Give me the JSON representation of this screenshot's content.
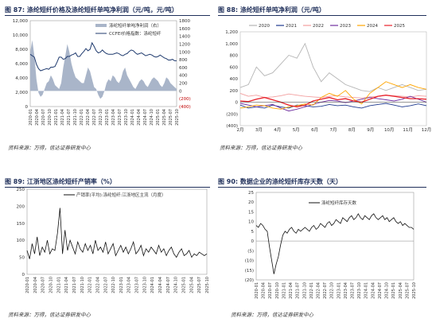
{
  "panels": [
    {
      "figure_no": "图 87:",
      "title": "涤纶短纤价格及涤纶短纤单吨净利润（元/吨，元/吨）",
      "source": "资料来源：万得，信达证券研发中心"
    },
    {
      "figure_no": "图 88:",
      "title": "涤纶短纤单吨净利润（元/吨）",
      "source": "资料来源：万得，信达证券研发中心"
    },
    {
      "figure_no": "图 89:",
      "title": "江浙地区涤纶短纤产销率（%）",
      "source": "资料来源：万得，信达证券研发中心"
    },
    {
      "figure_no": "图 90:",
      "title": "数据企业的涤纶短纤库存天数（天）",
      "source": "资料来源：万得，信达证券研发中心"
    }
  ],
  "colors": {
    "navy": "#1f2f5a",
    "profit_area": "#a9b5c9",
    "price_line": "#1f3a6e",
    "neg_label": "#c00000",
    "y2020": "#b5b5b5",
    "y2021": "#1f3a8f",
    "y2022": "#f29e9e",
    "y2023": "#7030a0",
    "y2024": "#ffa500",
    "y2025": "#e8202a"
  },
  "chart_data": [
    {
      "type": "area+line",
      "legend": [
        "涤纶短纤单吨净利润（右）",
        "CCFEI价格指数：涤纶短纤"
      ],
      "legend_position": "top-right",
      "ylim_left": [
        0,
        12000
      ],
      "yticks_left": [
        "0",
        "2,000",
        "4,000",
        "6,000",
        "8,000",
        "10,000",
        "12,000"
      ],
      "ylim_right": [
        -400,
        1800
      ],
      "yticks_right": [
        "(400)",
        "(200)",
        "0",
        "200",
        "400",
        "600",
        "800",
        "1000",
        "1200",
        "1400",
        "1600",
        "1800"
      ],
      "xticks": [
        "2020-01",
        "2020-04",
        "2020-07",
        "2020-10",
        "2021-01",
        "2021-04",
        "2021-07",
        "2021-10",
        "2022-01",
        "2022-04",
        "2022-07",
        "2022-10",
        "2023-01",
        "2023-04",
        "2023-07",
        "2023-10",
        "2024-01",
        "2024-04",
        "2024-07",
        "2024-10",
        "2025-01",
        "2025-04",
        "2025-07",
        "2025-10"
      ],
      "series": [
        {
          "name": "涤纶短纤单吨净利润（右）",
          "axis": "right",
          "values": [
            1000,
            1300,
            900,
            300,
            -50,
            -150,
            -100,
            50,
            200,
            250,
            400,
            300,
            150,
            100,
            50,
            200,
            600,
            900,
            1200,
            1000,
            700,
            500,
            350,
            300,
            250,
            200,
            200,
            400,
            600,
            500,
            300,
            100,
            50,
            -100,
            -200,
            -150,
            0,
            200,
            300,
            250,
            400,
            350,
            250,
            200,
            300,
            500,
            600,
            400,
            300,
            200,
            100,
            50,
            150,
            250,
            300,
            250,
            150,
            100,
            200,
            300,
            350,
            300,
            250,
            150,
            100,
            200,
            350,
            300,
            200,
            150,
            100,
            50
          ]
        },
        {
          "name": "CCFEI价格指数：涤纶短纤",
          "axis": "left",
          "values": [
            7300,
            7100,
            6900,
            5900,
            5300,
            5000,
            5100,
            5200,
            5300,
            5200,
            5500,
            5500,
            5600,
            6200,
            6900,
            6900,
            6600,
            6700,
            7000,
            7000,
            7200,
            7300,
            7500,
            7000,
            7000,
            7400,
            7700,
            8100,
            7800,
            8000,
            8900,
            8400,
            7800,
            7500,
            7600,
            7900,
            7600,
            7400,
            7300,
            7300,
            7300,
            7400,
            7500,
            7400,
            7200,
            7100,
            7300,
            7400,
            7700,
            7900,
            7800,
            7500,
            7300,
            7400,
            7500,
            7300,
            7100,
            7200,
            7300,
            7200,
            7000,
            6900,
            7000,
            7200,
            7000,
            6800,
            6700,
            6500,
            6500,
            6600,
            6400,
            6400
          ]
        }
      ]
    },
    {
      "type": "line",
      "legend": [
        "2020",
        "2021",
        "2022",
        "2023",
        "2024",
        "2025"
      ],
      "legend_position": "top",
      "ylim": [
        -400,
        1200
      ],
      "yticks": [
        "(400)",
        "(200)",
        "0",
        "200",
        "400",
        "600",
        "800",
        "1,000",
        "1,200"
      ],
      "xticks": [
        "2月",
        "3月",
        "4月",
        "5月",
        "6月",
        "7月",
        "8月",
        "9月",
        "10月",
        "11月",
        "12月"
      ],
      "series": [
        {
          "name": "2020",
          "values": [
            250,
            300,
            600,
            450,
            500,
            650,
            800,
            750,
            1000,
            600,
            350,
            500,
            400,
            300,
            250,
            200,
            180,
            250,
            200,
            250,
            300,
            250,
            200,
            220
          ]
        },
        {
          "name": "2021",
          "values": [
            -50,
            -100,
            -80,
            -100,
            -50,
            -80,
            -100,
            -50,
            -60,
            -80,
            -70,
            -40,
            -60,
            -50,
            -80,
            -100,
            -60,
            -40,
            -20,
            -50,
            -80,
            -60,
            -30,
            -60
          ]
        },
        {
          "name": "2022",
          "values": [
            150,
            100,
            120,
            80,
            90,
            110,
            140,
            120,
            100,
            90,
            80,
            100,
            110,
            90,
            80,
            70,
            90,
            100,
            120,
            110,
            100,
            90,
            110,
            100
          ]
        },
        {
          "name": "2023",
          "values": [
            -20,
            -50,
            -80,
            -60,
            -40,
            -100,
            -150,
            -120,
            -80,
            -40,
            0,
            30,
            20,
            -10,
            20,
            50,
            80,
            60,
            40,
            20,
            50,
            100,
            50,
            0
          ]
        },
        {
          "name": "2024",
          "values": [
            -100,
            -80,
            -50,
            -60,
            -100,
            -120,
            -80,
            -60,
            -30,
            -50,
            80,
            150,
            100,
            200,
            50,
            -30,
            150,
            250,
            350,
            300,
            250,
            300,
            250,
            220
          ]
        },
        {
          "name": "2025",
          "values": [
            20,
            10,
            50,
            80,
            40,
            0,
            -50,
            -80,
            -50,
            20,
            50,
            80,
            40,
            60,
            20,
            0,
            50,
            100,
            120,
            100,
            80,
            60,
            60,
            50
          ]
        }
      ]
    },
    {
      "type": "line",
      "legend": [
        "产销率(平均):涤纶短纤:江浙地区主流（月度）"
      ],
      "legend_position": "top",
      "ylim": [
        0,
        250
      ],
      "yticks": [
        "0",
        "50",
        "100",
        "150",
        "200",
        "250"
      ],
      "xticks": [
        "2020-01",
        "2020-04",
        "2020-07",
        "2020-10",
        "2021-01",
        "2021-04",
        "2021-07",
        "2021-10",
        "2022-01",
        "2022-04",
        "2022-07",
        "2022-10",
        "2023-01",
        "2023-04",
        "2023-07",
        "2023-10",
        "2024-01",
        "2024-04",
        "2024-07",
        "2024-10",
        "2025-01",
        "2025-04",
        "2025-07",
        "2025-10"
      ],
      "series": [
        {
          "name": "产销率(平均):涤纶短纤:江浙地区主流（月度）",
          "values": [
            70,
            45,
            90,
            60,
            110,
            55,
            80,
            65,
            100,
            60,
            75,
            70,
            120,
            195,
            60,
            130,
            70,
            100,
            80,
            60,
            95,
            75,
            65,
            90,
            70,
            85,
            60,
            100,
            70,
            80,
            65,
            95,
            60,
            75,
            90,
            55,
            70,
            85,
            65,
            80,
            60,
            75,
            95,
            60,
            70,
            85,
            55,
            75,
            65,
            80,
            70,
            60,
            85,
            65,
            75,
            55,
            70,
            80,
            60,
            50,
            65,
            75,
            55,
            60,
            70,
            50,
            60,
            55,
            65,
            60,
            55,
            60
          ]
        }
      ]
    },
    {
      "type": "line",
      "legend": [
        "涤纶短纤库存天数"
      ],
      "legend_position": "top-left",
      "ylim": [
        -20,
        25
      ],
      "yticks": [
        "(20)",
        "(15)",
        "(10)",
        "(5)",
        "0",
        "5",
        "10",
        "15",
        "20",
        "25"
      ],
      "xticks": [
        "2020-01",
        "2020-04",
        "2020-07",
        "2020-10",
        "2021-01",
        "2021-04",
        "2021-07",
        "2021-10",
        "2022-01",
        "2022-04",
        "2022-07",
        "2022-10",
        "2023-01",
        "2023-04",
        "2023-07",
        "2023-10",
        "2024-01",
        "2024-04",
        "2024-07",
        "2024-10",
        "2025-01",
        "2025-04",
        "2025-07",
        "2025-10"
      ],
      "series": [
        {
          "name": "涤纶短纤库存天数",
          "values": [
            8,
            7,
            9,
            8,
            6,
            5,
            -3,
            -10,
            -17,
            -12,
            -8,
            -2,
            3,
            5,
            4,
            6,
            7,
            5,
            4,
            6,
            5,
            6,
            7,
            6,
            5,
            7,
            8,
            6,
            7,
            9,
            8,
            7,
            9,
            10,
            8,
            9,
            11,
            10,
            9,
            12,
            11,
            10,
            12,
            13,
            11,
            12,
            14,
            12,
            11,
            13,
            12,
            11,
            13,
            14,
            12,
            11,
            12,
            13,
            11,
            12,
            10,
            11,
            12,
            10,
            9,
            10,
            8,
            9,
            8,
            7,
            7,
            6
          ]
        }
      ]
    }
  ]
}
